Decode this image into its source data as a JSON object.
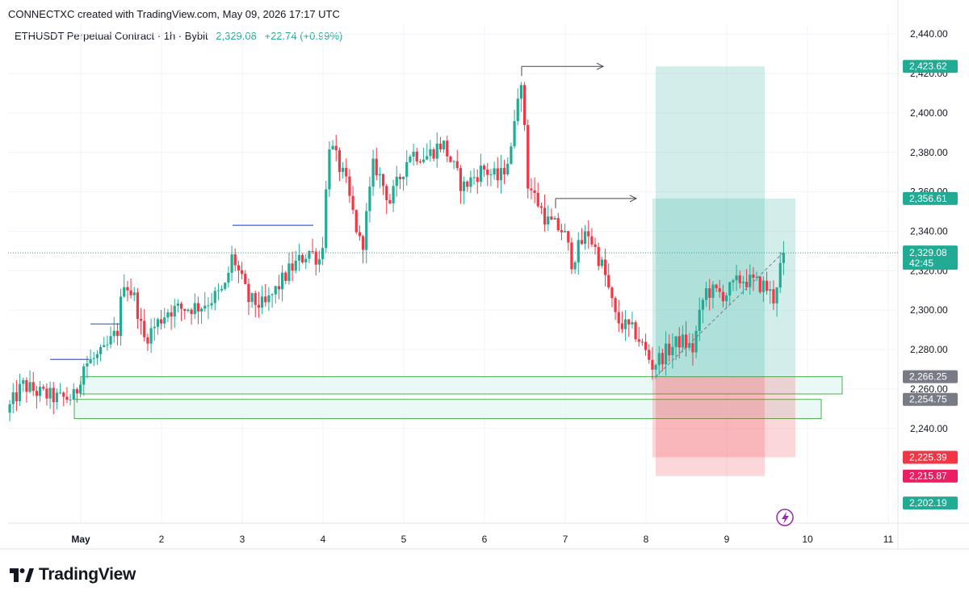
{
  "header": {
    "credit": "CONNECTXC created with TradingView.com, May 09, 2026 17:17 UTC",
    "symbol": "ETHUSDT Perpetual Contract · 1h · Bybit",
    "price": "2,329.08",
    "change": "+22.74 (+0.99%)"
  },
  "brand": {
    "name": "TradingView",
    "logo_icon": "tradingview-logo-icon"
  },
  "colors": {
    "up": "#22ab94",
    "down": "#f23645",
    "profit_zone": "#22ab94",
    "loss_zone": "#f23645",
    "zone_border": "#4caf50",
    "zone_fill": "#e3f7f3",
    "swing_line": "#2962ff",
    "last_price_line": "#22ab94"
  },
  "chart_data": {
    "type": "candlestick",
    "timeframe": "1h",
    "x_ticks": [
      "May",
      "2",
      "3",
      "4",
      "5",
      "6",
      "7",
      "8",
      "9",
      "10",
      "11"
    ],
    "y_ticks": [
      2240,
      2260,
      2280,
      2300,
      2320,
      2340,
      2360,
      2380,
      2400,
      2420,
      2440
    ],
    "y_tick_labels": [
      "2,240.00",
      "2,260.00",
      "2,280.00",
      "2,300.00",
      "2,320.00",
      "2,340.00",
      "2,360.00",
      "2,380.00",
      "2,400.00",
      "2,420.00",
      "2,440.00"
    ],
    "ylim": [
      2192,
      2445
    ],
    "xlim_days": [
      0.1,
      11.1
    ],
    "grid": true,
    "last_price": {
      "value": 2329.08,
      "label": "2,329.08",
      "countdown": "42:45"
    },
    "price_tags": [
      {
        "value": 2423.62,
        "label": "2,423.62",
        "color": "#22ab94"
      },
      {
        "value": 2356.61,
        "label": "2,356.61",
        "color": "#22ab94"
      },
      {
        "value": 2266.25,
        "label": "2,266.25",
        "color": "#787b86"
      },
      {
        "value": 2254.75,
        "label": "2,254.75",
        "color": "#787b86"
      },
      {
        "value": 2225.39,
        "label": "2,225.39",
        "color": "#f23645"
      },
      {
        "value": 2215.87,
        "label": "2,215.87",
        "color": "#e91e63"
      },
      {
        "value": 2202.19,
        "label": "2,202.19",
        "color": "#22ab94"
      }
    ],
    "swing_high_lines": [
      {
        "from_day": 0.62,
        "to_day": 1.1,
        "price": 2275
      },
      {
        "from_day": 1.12,
        "to_day": 1.48,
        "price": 2293
      },
      {
        "from_day": 2.88,
        "to_day": 3.88,
        "price": 2343
      }
    ],
    "target_arrows": [
      {
        "from_day": 6.46,
        "to_day": 7.47,
        "price": 2423.62
      },
      {
        "from_day": 6.88,
        "to_day": 7.88,
        "price": 2356.61
      }
    ],
    "demand_zones": [
      {
        "from_day": 1.0,
        "to_day": 10.43,
        "top": 2266.25,
        "bottom": 2257.5
      },
      {
        "from_day": 0.92,
        "to_day": 10.17,
        "top": 2254.75,
        "bottom": 2245
      }
    ],
    "positions": [
      {
        "from_day": 8.12,
        "to_day": 9.47,
        "entry": 2266.25,
        "target": 2423.62,
        "stop": 2215.87
      },
      {
        "from_day": 8.08,
        "to_day": 9.85,
        "entry": 2266.25,
        "target": 2356.61,
        "stop": 2225.39
      }
    ],
    "path_points": [
      [
        0.1,
        2248
      ],
      [
        0.3,
        2262
      ],
      [
        0.5,
        2258
      ],
      [
        0.75,
        2255
      ],
      [
        0.95,
        2256
      ],
      [
        1.05,
        2272
      ],
      [
        1.3,
        2278
      ],
      [
        1.48,
        2290
      ],
      [
        1.55,
        2316
      ],
      [
        1.7,
        2305
      ],
      [
        1.8,
        2285
      ],
      [
        2.1,
        2300
      ],
      [
        2.5,
        2302
      ],
      [
        2.8,
        2310
      ],
      [
        2.9,
        2328
      ],
      [
        3.1,
        2305
      ],
      [
        3.3,
        2302
      ],
      [
        3.6,
        2320
      ],
      [
        3.85,
        2330
      ],
      [
        4.0,
        2325
      ],
      [
        4.1,
        2385
      ],
      [
        4.3,
        2365
      ],
      [
        4.5,
        2330
      ],
      [
        4.65,
        2375
      ],
      [
        4.85,
        2355
      ],
      [
        5.1,
        2380
      ],
      [
        5.3,
        2378
      ],
      [
        5.5,
        2385
      ],
      [
        5.75,
        2362
      ],
      [
        6.0,
        2372
      ],
      [
        6.2,
        2366
      ],
      [
        6.35,
        2380
      ],
      [
        6.42,
        2412
      ],
      [
        6.5,
        2410
      ],
      [
        6.55,
        2365
      ],
      [
        6.8,
        2345
      ],
      [
        7.0,
        2340
      ],
      [
        7.1,
        2325
      ],
      [
        7.3,
        2340
      ],
      [
        7.5,
        2320
      ],
      [
        7.65,
        2295
      ],
      [
        7.9,
        2288
      ],
      [
        8.1,
        2272
      ],
      [
        8.25,
        2278
      ],
      [
        8.45,
        2285
      ],
      [
        8.6,
        2280
      ],
      [
        8.75,
        2310
      ],
      [
        9.0,
        2308
      ],
      [
        9.2,
        2316
      ],
      [
        9.5,
        2312
      ],
      [
        9.6,
        2306
      ],
      [
        9.72,
        2329
      ]
    ]
  }
}
